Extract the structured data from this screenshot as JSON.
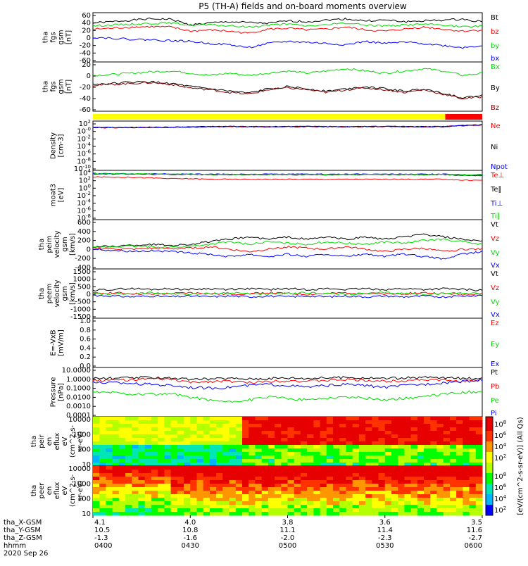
{
  "title": "P5 (TH-A) fields and on-board moments overview",
  "colors": {
    "black": "#000000",
    "red": "#ff0000",
    "green": "#00dd00",
    "blue": "#0000ff",
    "yellow": "#ffff00",
    "darkred": "#8b0000"
  },
  "chart_data": [
    {
      "type": "line",
      "ylabel": [
        "tha",
        "fgs",
        "gsm",
        "[nT]"
      ],
      "ylim": [
        -60,
        60
      ],
      "yticks": [
        "60",
        "40",
        "20",
        "0",
        "-20",
        "-40",
        "-60"
      ],
      "series": [
        {
          "name": "Bt",
          "color": "#000000",
          "values": [
            35,
            38,
            42,
            45,
            44,
            30,
            35,
            38,
            36,
            34,
            40,
            38,
            42,
            45,
            40,
            42,
            38,
            40,
            42,
            44,
            38
          ]
        },
        {
          "name": "bz",
          "color": "#ff0000",
          "values": [
            20,
            22,
            25,
            26,
            25,
            15,
            18,
            15,
            10,
            20,
            22,
            18,
            20,
            25,
            18,
            15,
            20,
            25,
            20,
            15,
            18
          ]
        },
        {
          "name": "by",
          "color": "#00dd00",
          "values": [
            28,
            30,
            32,
            34,
            35,
            30,
            30,
            28,
            25,
            30,
            32,
            28,
            30,
            35,
            30,
            28,
            30,
            32,
            30,
            25,
            28
          ]
        },
        {
          "name": "bx",
          "color": "#0000ff",
          "values": [
            0,
            -2,
            -5,
            -6,
            -8,
            -10,
            -15,
            -18,
            -25,
            -15,
            -10,
            -12,
            -15,
            -18,
            -10,
            -15,
            -12,
            -15,
            -20,
            -25,
            -20
          ]
        }
      ]
    },
    {
      "type": "line",
      "ylabel": [
        "tha",
        "fgs",
        "gsm",
        "[nT]"
      ],
      "ylim": [
        -70,
        40
      ],
      "yticks": [
        "20",
        "0",
        "-20",
        "-40",
        "-60"
      ],
      "series": [
        {
          "name": "Bx",
          "color": "#00dd00",
          "values": [
            10,
            12,
            15,
            18,
            20,
            15,
            10,
            15,
            10,
            15,
            20,
            15,
            20,
            25,
            20,
            15,
            20,
            25,
            20,
            10,
            15
          ]
        },
        {
          "name": "By",
          "color": "#000000",
          "values": [
            -10,
            -8,
            -5,
            -5,
            -8,
            -15,
            -20,
            -25,
            -30,
            -20,
            -15,
            -20,
            -25,
            -20,
            -15,
            -20,
            -25,
            -20,
            -30,
            -40,
            -35
          ]
        },
        {
          "name": "Bz",
          "color": "#8b0000",
          "values": [
            -12,
            -10,
            -8,
            -6,
            -10,
            -18,
            -22,
            -28,
            -32,
            -22,
            -18,
            -22,
            -28,
            -22,
            -18,
            -22,
            -28,
            -22,
            -32,
            -42,
            -38
          ]
        }
      ]
    },
    {
      "type": "bar",
      "mode_bar": [
        {
          "from": 0,
          "to": 0.905,
          "color": "#ffff00"
        },
        {
          "from": 0.905,
          "to": 1,
          "color": "#ff0000"
        }
      ]
    },
    {
      "type": "line",
      "ylabel": [
        "Density",
        "[cm-3]"
      ],
      "scale": "log",
      "ylim": [
        1e-12,
        1000
      ],
      "yticks": [
        "10^2",
        "10^-0",
        "10^-2",
        "10^-4",
        "10^-6",
        "10^-8",
        "10^-10"
      ],
      "series": [
        {
          "name": "Ne",
          "color": "#ff0000",
          "values": [
            10,
            10,
            10,
            12,
            12,
            15,
            20,
            22,
            20,
            18,
            20,
            22,
            20,
            18,
            20,
            22,
            20,
            18,
            20,
            40,
            60
          ]
        },
        {
          "name": "Ni",
          "color": "#000000",
          "values": [
            12,
            12,
            12,
            14,
            14,
            18,
            22,
            25,
            22,
            20,
            22,
            25,
            22,
            20,
            22,
            25,
            22,
            20,
            22,
            45,
            70
          ]
        },
        {
          "name": "Npot",
          "color": "#0000ff",
          "values": [
            11,
            11,
            11,
            13,
            13,
            16,
            21,
            23,
            21,
            19,
            21,
            23,
            21,
            19,
            21,
            23,
            21,
            19,
            21,
            42,
            65
          ]
        }
      ]
    },
    {
      "type": "line",
      "ylabel": [
        "moat3",
        "[eV]"
      ],
      "scale": "log",
      "ylim": [
        1e-10,
        100000.0
      ],
      "yticks": [
        "10^4",
        "10^2",
        "10^0",
        "10^-2",
        "10^-4",
        "10^-6",
        "10^-8"
      ],
      "series": [
        {
          "name": "Te⊥",
          "color": "#ff0000",
          "values": [
            1000,
            900,
            800,
            500,
            300,
            300,
            200,
            200,
            200,
            200,
            200,
            200,
            200,
            200,
            200,
            200,
            200,
            200,
            200,
            100,
            100
          ]
        },
        {
          "name": "Te∥",
          "color": "#000000",
          "values": [
            8000,
            8000,
            8000,
            7000,
            6000,
            6000,
            5000,
            5000,
            5000,
            5000,
            5000,
            5000,
            5000,
            5000,
            5000,
            5000,
            5000,
            5000,
            5000,
            3000,
            3000
          ]
        },
        {
          "name": "Ti⊥",
          "color": "#0000ff",
          "values": [
            10000,
            10000,
            10000,
            9000,
            8000,
            8000,
            7000,
            7000,
            7000,
            7000,
            7000,
            7000,
            7000,
            7000,
            7000,
            7000,
            7000,
            7000,
            7000,
            5000,
            5000
          ]
        },
        {
          "name": "Ti∥",
          "color": "#00dd00",
          "values": [
            9000,
            9000,
            9000,
            8000,
            7000,
            7000,
            6000,
            6000,
            6000,
            6000,
            6000,
            6000,
            6000,
            6000,
            6000,
            6000,
            6000,
            6000,
            6000,
            4000,
            4000
          ]
        }
      ]
    },
    {
      "type": "line",
      "ylabel": [
        "tha",
        "peim",
        "velocity",
        "gsm",
        "[km/s]"
      ],
      "ylim": [
        -400,
        600
      ],
      "yticks": [
        "600",
        "400",
        "200",
        "0",
        "-200",
        "-400"
      ],
      "series": [
        {
          "name": "Vt",
          "color": "#000000",
          "values": [
            50,
            60,
            80,
            100,
            80,
            100,
            150,
            200,
            250,
            200,
            250,
            200,
            250,
            200,
            250,
            200,
            250,
            300,
            250,
            200,
            150
          ]
        },
        {
          "name": "Vz",
          "color": "#ff0000",
          "values": [
            20,
            10,
            0,
            20,
            10,
            20,
            50,
            0,
            -50,
            0,
            50,
            20,
            0,
            50,
            0,
            -50,
            0,
            20,
            -50,
            0,
            0
          ]
        },
        {
          "name": "Vy",
          "color": "#00dd00",
          "values": [
            30,
            50,
            60,
            50,
            40,
            60,
            100,
            150,
            100,
            150,
            120,
            100,
            150,
            120,
            100,
            150,
            120,
            180,
            200,
            150,
            100
          ]
        },
        {
          "name": "Vx",
          "color": "#0000ff",
          "values": [
            0,
            -20,
            -40,
            -30,
            -50,
            -80,
            -100,
            -150,
            -100,
            -150,
            -100,
            -150,
            -100,
            -150,
            -100,
            -150,
            -100,
            -150,
            -200,
            -100,
            -50
          ]
        }
      ]
    },
    {
      "type": "line",
      "ylabel": [
        "tha",
        "peem",
        "velocity",
        "gsm",
        "[km/s]"
      ],
      "ylim": [
        -1500,
        1500
      ],
      "yticks": [
        "1500",
        "1000",
        "500",
        "0",
        "-500",
        "-1000",
        "-1500"
      ],
      "series": [
        {
          "name": "Vt",
          "color": "#000000",
          "values": [
            200,
            250,
            300,
            250,
            300,
            250,
            300,
            250,
            300,
            250,
            300,
            250,
            300,
            250,
            300,
            250,
            300,
            250,
            300,
            250,
            200
          ]
        },
        {
          "name": "Vz",
          "color": "#ff0000",
          "values": [
            0,
            50,
            0,
            -50,
            0,
            50,
            0,
            -50,
            0,
            50,
            0,
            -50,
            0,
            50,
            0,
            -50,
            0,
            50,
            0,
            -50,
            0
          ]
        },
        {
          "name": "Vy",
          "color": "#00dd00",
          "values": [
            0,
            -50,
            0,
            50,
            0,
            -50,
            0,
            50,
            0,
            -50,
            0,
            50,
            0,
            -50,
            0,
            50,
            0,
            -50,
            0,
            50,
            0
          ]
        },
        {
          "name": "Vx",
          "color": "#0000ff",
          "values": [
            -100,
            -150,
            -200,
            -150,
            -200,
            -150,
            -200,
            -150,
            -200,
            -150,
            -200,
            -150,
            -200,
            -150,
            -200,
            -150,
            -200,
            -150,
            -200,
            -150,
            -100
          ]
        }
      ]
    },
    {
      "type": "line",
      "ylabel": [
        "E=-VxB",
        "[mV/m]"
      ],
      "ylim": [
        0,
        1
      ],
      "yticks": [
        "1.0",
        "0.8",
        "0.6",
        "0.4",
        "0.2",
        "0.0"
      ],
      "series": [
        {
          "name": "Ez",
          "color": "#ff0000",
          "values": []
        },
        {
          "name": "Ey",
          "color": "#00dd00",
          "values": []
        },
        {
          "name": "Ex",
          "color": "#0000ff",
          "values": []
        }
      ]
    },
    {
      "type": "line",
      "ylabel": [
        "Pressure",
        "[nPa]"
      ],
      "scale": "log",
      "ylim": [
        0.0001,
        10
      ],
      "yticks": [
        "10.0000",
        "1.0000",
        "0.1000",
        "0.0100",
        "0.0010",
        "0.0001"
      ],
      "series": [
        {
          "name": "Pt",
          "color": "#000000",
          "values": [
            0.8,
            0.8,
            0.9,
            1.0,
            0.9,
            0.6,
            0.7,
            0.8,
            0.7,
            0.8,
            0.9,
            0.8,
            0.9,
            1.0,
            0.9,
            0.8,
            0.9,
            1.0,
            0.9,
            0.8,
            0.9
          ]
        },
        {
          "name": "Pb",
          "color": "#ff0000",
          "values": [
            0.5,
            0.5,
            0.6,
            0.7,
            0.6,
            0.3,
            0.4,
            0.4,
            0.3,
            0.4,
            0.5,
            0.4,
            0.5,
            0.6,
            0.5,
            0.4,
            0.5,
            0.6,
            0.5,
            0.4,
            0.5
          ]
        },
        {
          "name": "Pe",
          "color": "#00dd00",
          "values": [
            0.03,
            0.03,
            0.02,
            0.02,
            0.02,
            0.01,
            0.005,
            0.003,
            0.005,
            0.01,
            0.008,
            0.005,
            0.008,
            0.01,
            0.008,
            0.005,
            0.008,
            0.01,
            0.02,
            0.03,
            0.04
          ]
        },
        {
          "name": "Pi",
          "color": "#0000ff",
          "values": [
            0.3,
            0.3,
            0.25,
            0.2,
            0.15,
            0.1,
            0.08,
            0.1,
            0.15,
            0.2,
            0.15,
            0.1,
            0.15,
            0.2,
            0.15,
            0.1,
            0.15,
            0.2,
            0.3,
            0.4,
            0.5
          ]
        }
      ]
    },
    {
      "type": "heatmap",
      "ylabel": [
        "tha",
        "peir",
        "en",
        "eflux",
        "eV",
        "(cm^2-s-",
        "sr-eV)"
      ],
      "scale": "log",
      "ylim": [
        5,
        30000
      ],
      "yticks": [
        "10000",
        "1000",
        "100",
        "10"
      ]
    },
    {
      "type": "heatmap",
      "ylabel": [
        "tha",
        "peer",
        "en",
        "eflux",
        "eV",
        "(cm^2-s-",
        "sr-eV)"
      ],
      "scale": "log",
      "ylim": [
        5,
        30000
      ],
      "yticks": [
        "10000",
        "1000",
        "100",
        "10"
      ]
    }
  ],
  "colorbar": {
    "ticks_top": [
      "10^8",
      "10^6",
      "10^4",
      "10^2"
    ],
    "ticks_bottom": [
      "10^8",
      "10^6",
      "10^4",
      "10^2"
    ],
    "label": "[eV/(cm^2-s-sr-eV)] (All Qs)"
  },
  "x_axis": {
    "rows": [
      {
        "label": "tha_X-GSM",
        "values": [
          "4.1",
          "4.0",
          "3.8",
          "3.6",
          "3.5"
        ]
      },
      {
        "label": "tha_Y-GSM",
        "values": [
          "10.5",
          "10.8",
          "11.1",
          "11.4",
          "11.6"
        ]
      },
      {
        "label": "tha_Z-GSM",
        "values": [
          "-1.3",
          "-1.6",
          "-2.0",
          "-2.3",
          "-2.7"
        ]
      },
      {
        "label": "hhmm",
        "values": [
          "0400",
          "0430",
          "0500",
          "0530",
          "0600"
        ]
      }
    ],
    "date": "2020 Sep 26"
  }
}
